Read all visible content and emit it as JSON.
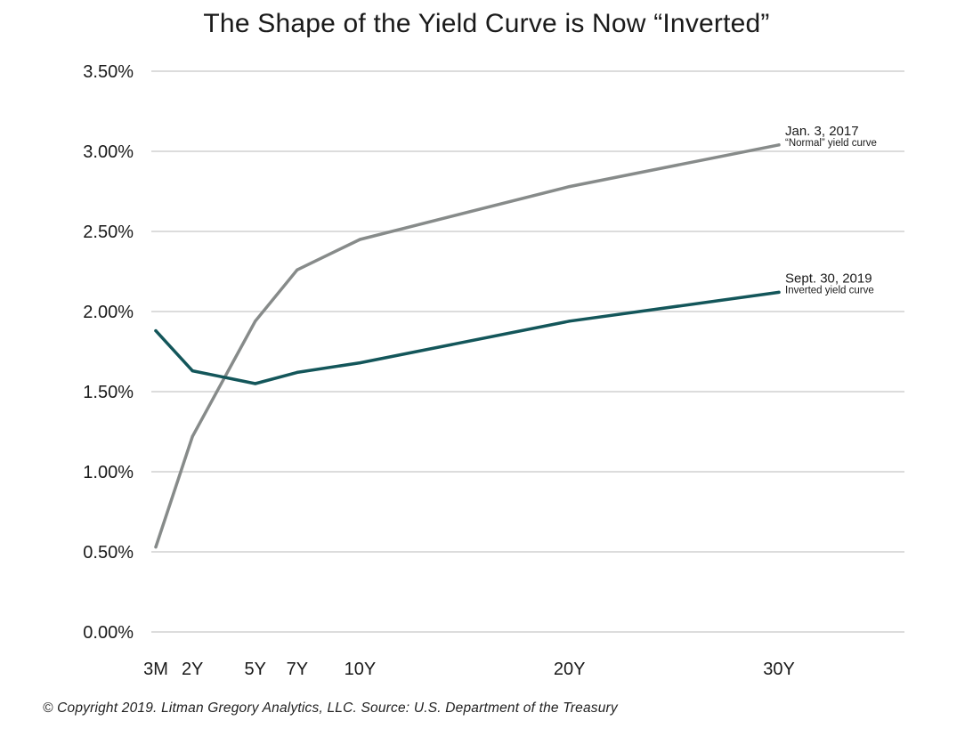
{
  "chart_data": {
    "type": "line",
    "title": "The Shape of the Yield Curve is Now “Inverted”",
    "xlabel": "",
    "ylabel": "",
    "x_categories": [
      "3M",
      "2Y",
      "5Y",
      "7Y",
      "10Y",
      "20Y",
      "30Y"
    ],
    "x_years": [
      0.25,
      2,
      5,
      7,
      10,
      20,
      30
    ],
    "x_range": [
      0,
      36
    ],
    "ylim": [
      0,
      3.5
    ],
    "yticks": [
      0,
      0.5,
      1.0,
      1.5,
      2.0,
      2.5,
      3.0,
      3.5
    ],
    "ytick_labels": [
      "0.00%",
      "0.50%",
      "1.00%",
      "1.50%",
      "2.00%",
      "2.50%",
      "3.00%",
      "3.50%"
    ],
    "grid": "horizontal",
    "series": [
      {
        "name": "Jan. 3, 2017",
        "note": "“Normal” yield curve",
        "color": "#878b8a",
        "values": [
          0.53,
          1.22,
          1.94,
          2.26,
          2.45,
          2.78,
          3.04
        ]
      },
      {
        "name": "Sept. 30, 2019",
        "note": "Inverted yield curve",
        "color": "#13565a",
        "values": [
          1.88,
          1.63,
          1.55,
          1.62,
          1.68,
          1.94,
          2.12
        ]
      }
    ]
  },
  "footer": "© Copyright 2019. Litman Gregory Analytics, LLC. Source: U.S. Department of the Treasury"
}
